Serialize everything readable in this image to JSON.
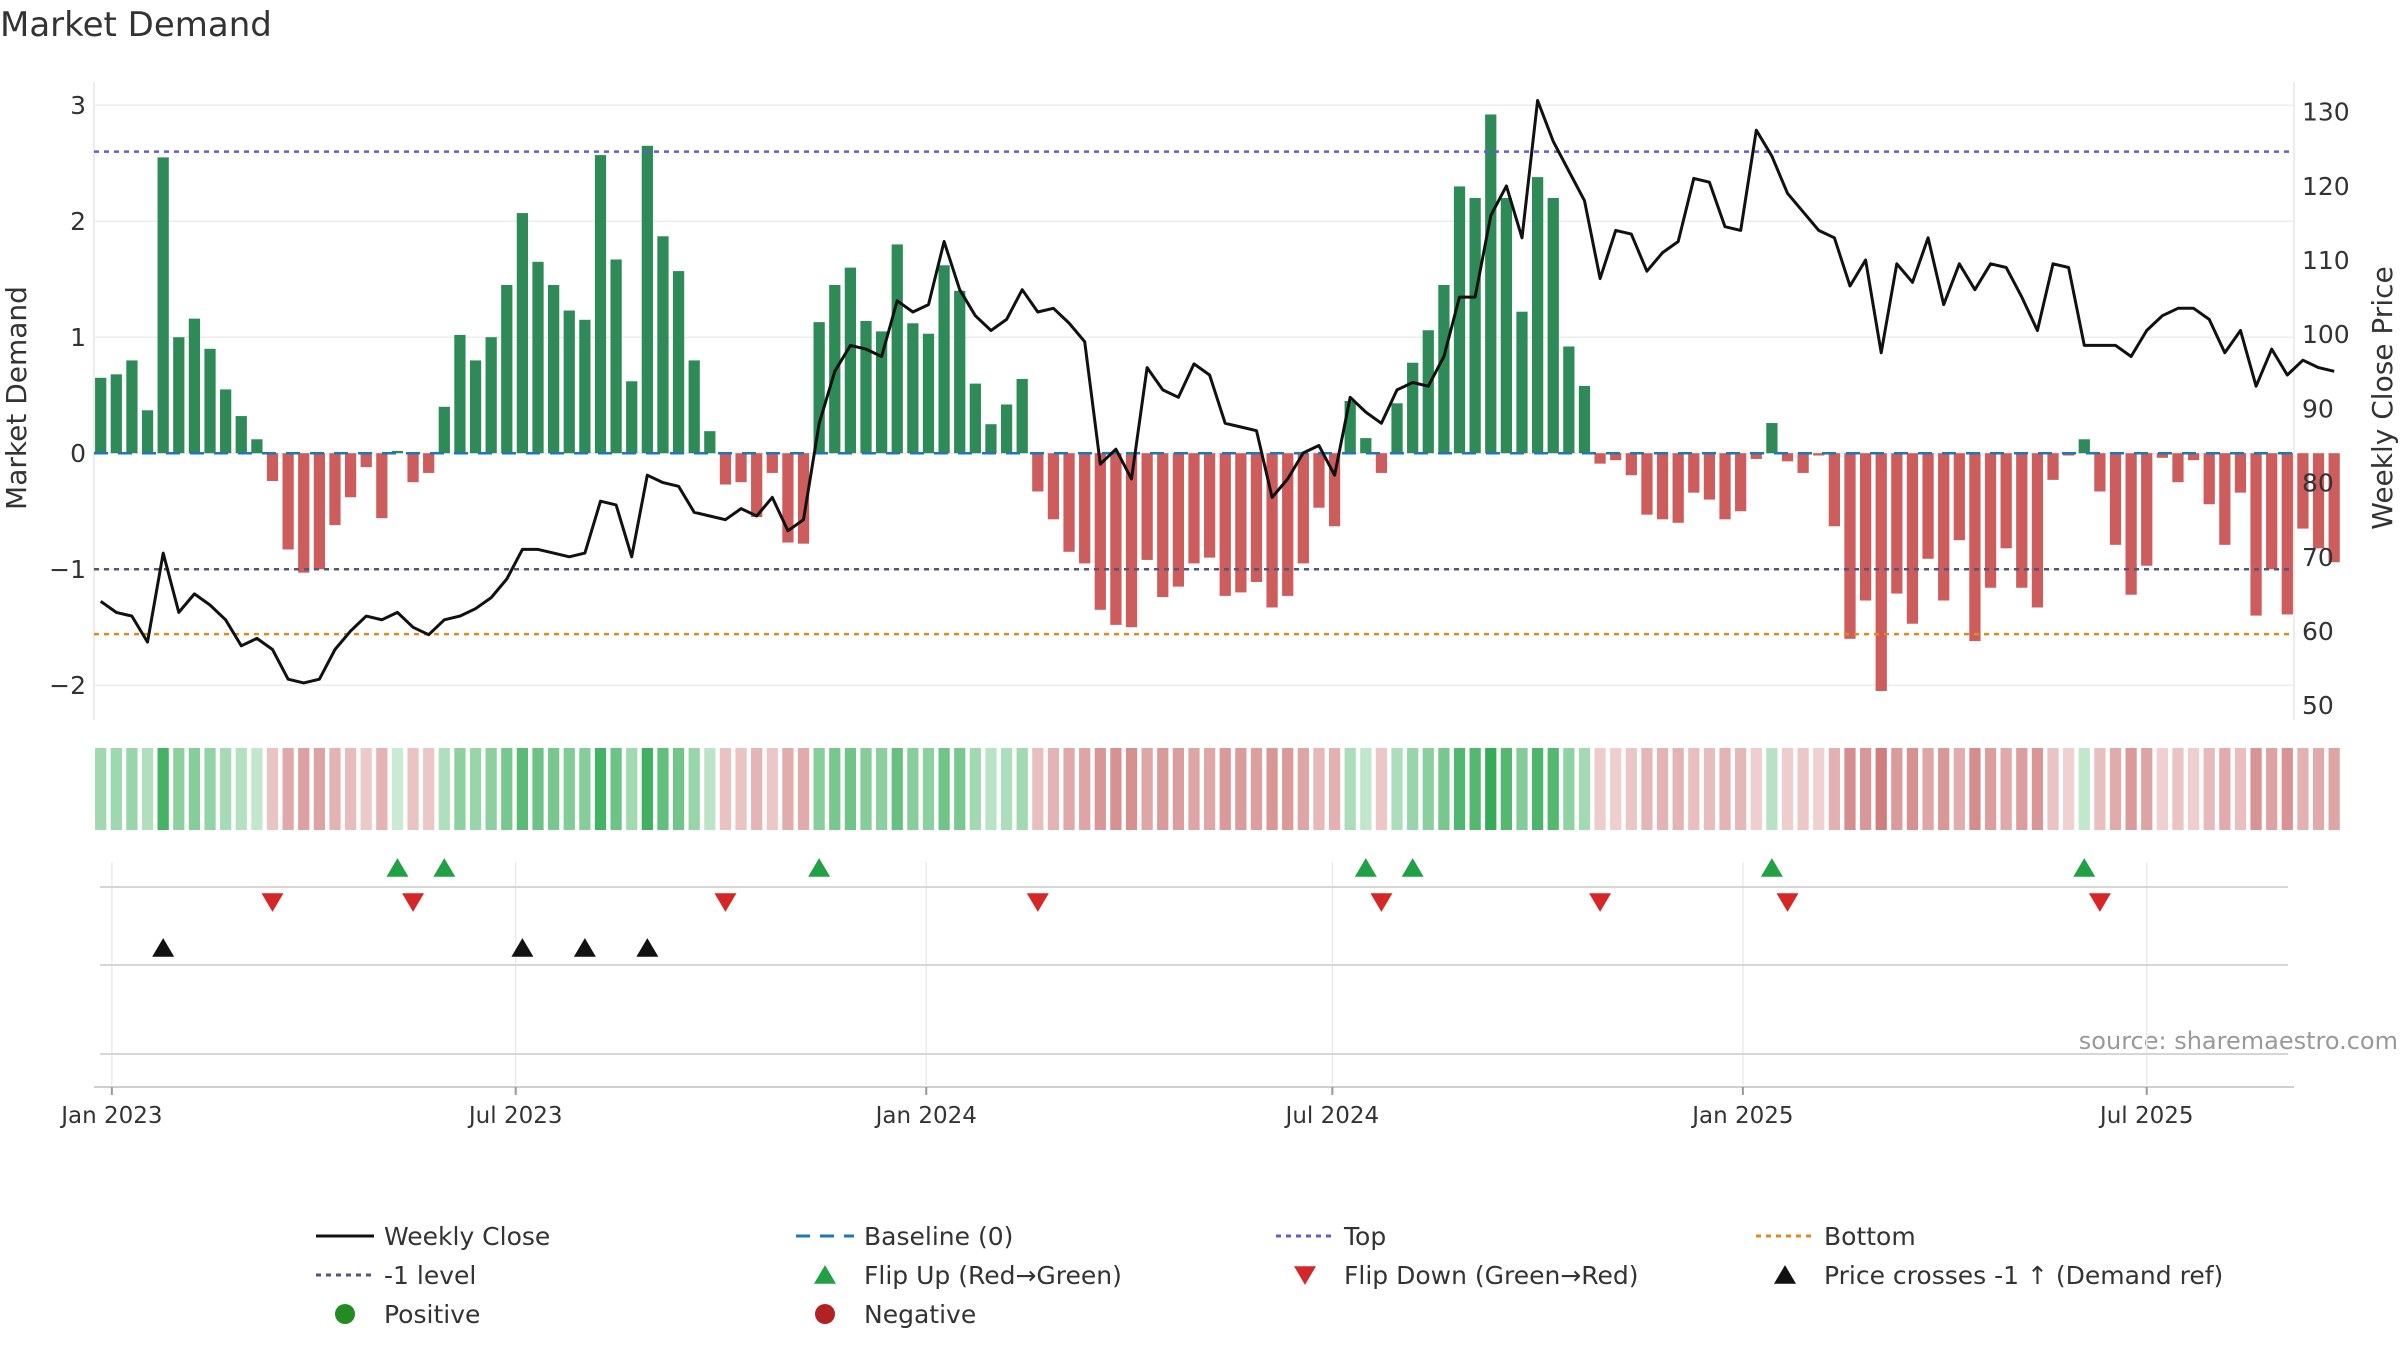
{
  "chart_data": {
    "type": "bar",
    "title": "Market Demand",
    "ylabel": "Market Demand",
    "y2label": "Weekly Close Price",
    "ylim": [
      -2.3,
      3.2
    ],
    "y2lim": [
      48,
      134
    ],
    "yticks": [
      -2,
      -1,
      0,
      1,
      2,
      3
    ],
    "y2ticks": [
      50,
      60,
      70,
      80,
      90,
      100,
      110,
      120,
      130
    ],
    "x_start": "2022-12-24",
    "x_end": "2025-09-05",
    "x_ticks": [
      {
        "label": "Jan 2023",
        "date": "2023-01-01"
      },
      {
        "label": "Jul 2023",
        "date": "2023-07-01"
      },
      {
        "label": "Jan 2024",
        "date": "2024-01-01"
      },
      {
        "label": "Jul 2024",
        "date": "2024-07-01"
      },
      {
        "label": "Jan 2025",
        "date": "2025-01-01"
      },
      {
        "label": "Jul 2025",
        "date": "2025-07-01"
      }
    ],
    "first_week": "2022-12-27",
    "demand": [
      0.65,
      0.68,
      0.8,
      0.37,
      2.55,
      1.0,
      1.16,
      0.9,
      0.55,
      0.32,
      0.12,
      -0.24,
      -0.83,
      -1.03,
      -1.0,
      -0.62,
      -0.38,
      -0.12,
      -0.56,
      0.02,
      -0.25,
      -0.17,
      0.4,
      1.02,
      0.8,
      1.0,
      1.45,
      2.07,
      1.65,
      1.45,
      1.23,
      1.15,
      2.57,
      1.67,
      0.62,
      2.65,
      1.87,
      1.57,
      0.8,
      0.19,
      -0.27,
      -0.25,
      -0.55,
      -0.17,
      -0.77,
      -0.78,
      1.13,
      1.45,
      1.6,
      1.14,
      1.05,
      1.8,
      1.12,
      1.03,
      1.62,
      1.4,
      0.6,
      0.25,
      0.42,
      0.64,
      -0.33,
      -0.57,
      -0.85,
      -0.95,
      -1.35,
      -1.48,
      -1.5,
      -0.92,
      -1.24,
      -1.15,
      -0.95,
      -0.9,
      -1.23,
      -1.2,
      -1.11,
      -1.33,
      -1.23,
      -0.95,
      -0.47,
      -0.63,
      0.45,
      0.13,
      -0.17,
      0.43,
      0.78,
      1.06,
      1.45,
      2.3,
      2.2,
      2.92,
      2.2,
      1.22,
      2.38,
      2.2,
      0.92,
      0.58,
      -0.09,
      -0.06,
      -0.19,
      -0.53,
      -0.57,
      -0.6,
      -0.34,
      -0.4,
      -0.57,
      -0.5,
      -0.05,
      0.26,
      -0.07,
      -0.17,
      -0.02,
      -0.63,
      -1.6,
      -1.27,
      -2.05,
      -1.21,
      -1.47,
      -0.91,
      -1.27,
      -0.75,
      -1.62,
      -1.16,
      -0.82,
      -1.16,
      -1.33,
      -0.23,
      -0.02,
      0.12,
      -0.33,
      -0.79,
      -1.22,
      -0.97,
      -0.04,
      -0.25,
      -0.06,
      -0.44,
      -0.79,
      -0.34,
      -1.4,
      -1.0,
      -1.39,
      -0.65,
      -0.82,
      -0.94
    ],
    "close": [
      64.0,
      62.5,
      62.0,
      58.5,
      70.5,
      62.5,
      65.0,
      63.5,
      61.5,
      58.0,
      59.0,
      57.5,
      53.5,
      53.0,
      53.5,
      57.5,
      60.0,
      62.0,
      61.5,
      62.5,
      60.5,
      59.5,
      61.5,
      62.0,
      63.0,
      64.5,
      67.0,
      71.0,
      71.0,
      70.5,
      70.0,
      70.5,
      77.5,
      77.0,
      70.0,
      81.0,
      80.0,
      79.5,
      76.0,
      75.5,
      75.0,
      76.5,
      75.5,
      78.0,
      73.5,
      75.0,
      88.0,
      95.0,
      98.5,
      98.0,
      97.0,
      104.5,
      103.0,
      104.0,
      112.5,
      106.0,
      102.5,
      100.5,
      102.0,
      106.0,
      103.0,
      103.5,
      101.5,
      99.0,
      82.5,
      84.5,
      80.5,
      95.5,
      92.5,
      91.5,
      96.0,
      94.5,
      88.0,
      87.5,
      87.0,
      78.0,
      80.5,
      84.0,
      85.0,
      81.0,
      91.5,
      89.5,
      88.0,
      92.5,
      93.5,
      93.0,
      97.0,
      105.0,
      105.0,
      116.0,
      120.0,
      113.0,
      131.5,
      126.0,
      122.0,
      118.0,
      107.5,
      114.0,
      113.5,
      108.5,
      111.0,
      112.5,
      121.0,
      120.5,
      114.5,
      114.0,
      127.5,
      124.0,
      119.0,
      116.5,
      114.0,
      113.0,
      106.5,
      110.0,
      97.5,
      109.5,
      107.0,
      113.0,
      104.0,
      109.5,
      106.0,
      109.5,
      109.0,
      105.0,
      100.5,
      109.5,
      109.0,
      98.5,
      98.5,
      98.5,
      97.0,
      100.5,
      102.5,
      103.5,
      103.5,
      102.0,
      97.5,
      100.5,
      93.0,
      98.0,
      94.5,
      96.5,
      95.5,
      95.0
    ],
    "top_level": 2.6,
    "bottom_level": -1.56,
    "minus1_level": -1.0,
    "baseline": 0,
    "flip_up_weeks": [
      19,
      22,
      46,
      81,
      84,
      107,
      127
    ],
    "flip_down_weeks": [
      11,
      20,
      40,
      60,
      82,
      96,
      108,
      128
    ],
    "price_cross_weeks": [
      4,
      27,
      31,
      35
    ],
    "source": "source: sharemaestro.com",
    "colors": {
      "positive_bar": "#2e8b57",
      "negative_bar": "#cd5c5c",
      "close_line": "#111111",
      "baseline": "#1f77b4",
      "top": "#6a5acd",
      "minus1": "#555577",
      "bottom": "#e08a1e",
      "flip_up": "#22a045",
      "flip_down": "#d62728",
      "cross": "#111111",
      "positive_dot": "#228b22",
      "negative_dot": "#b22222"
    },
    "legend": [
      {
        "label": "Weekly Close",
        "kind": "line",
        "key": "close_line"
      },
      {
        "label": "Baseline (0)",
        "kind": "dash",
        "key": "baseline"
      },
      {
        "label": "Top",
        "kind": "dot",
        "key": "top"
      },
      {
        "label": "Bottom",
        "kind": "dot",
        "key": "bottom"
      },
      {
        "label": "-1 level",
        "kind": "dot",
        "key": "minus1"
      },
      {
        "label": "Flip Up (Red→Green)",
        "kind": "tri-up",
        "key": "flip_up"
      },
      {
        "label": "Flip Down (Green→Red)",
        "kind": "tri-down",
        "key": "flip_down"
      },
      {
        "label": "Price crosses -1 ↑ (Demand ref)",
        "kind": "tri-up",
        "key": "cross"
      },
      {
        "label": "Positive",
        "kind": "circle",
        "key": "positive_dot"
      },
      {
        "label": "Negative",
        "kind": "circle",
        "key": "negative_dot"
      }
    ]
  }
}
